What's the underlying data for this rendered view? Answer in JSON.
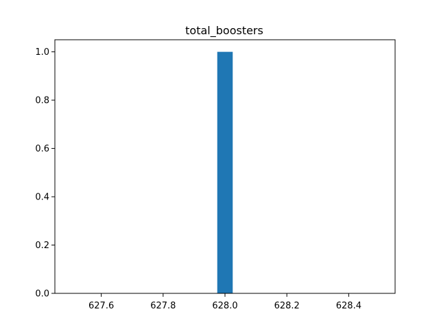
{
  "chart_data": {
    "type": "bar",
    "title": "total_boosters",
    "xlabel": "",
    "ylabel": "",
    "bars": [
      {
        "x_start": 627.975,
        "x_end": 628.025,
        "value": 1.0
      }
    ],
    "xlim": [
      627.45,
      628.55
    ],
    "ylim": [
      0.0,
      1.05
    ],
    "x_ticks": [
      627.6,
      627.8,
      628.0,
      628.2,
      628.4
    ],
    "x_tick_labels": [
      "627.6",
      "627.8",
      "628.0",
      "628.2",
      "628.4"
    ],
    "y_ticks": [
      0.0,
      0.2,
      0.4,
      0.6,
      0.8,
      1.0
    ],
    "y_tick_labels": [
      "0.0",
      "0.2",
      "0.4",
      "0.6",
      "0.8",
      "1.0"
    ],
    "grid": false,
    "legend": "none",
    "colors": {
      "bar": "#1f77b4",
      "axes": "#000000",
      "background": "#ffffff"
    }
  }
}
